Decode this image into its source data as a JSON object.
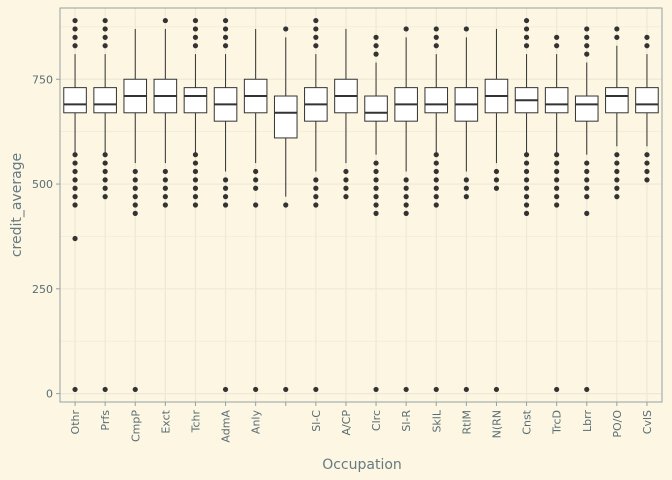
{
  "chart_data": {
    "type": "boxplot",
    "title": "",
    "xlabel": "Occupation",
    "ylabel": "credit_average",
    "ylim": [
      -20,
      920
    ],
    "y_ticks": [
      0,
      250,
      500,
      750
    ],
    "grid": true,
    "legend": "none",
    "colors": {
      "background": "#fdf6e3",
      "panel": "#fdf6e3",
      "grid": "#eee8d5",
      "box_fill": "#ffffff",
      "box_line": "#333333",
      "outlier": "#333333",
      "text": "#586e75"
    },
    "categories": [
      "Othr",
      "Prfs",
      "CmpP",
      "Exct",
      "Tchr",
      "AdmA",
      "Anly",
      "",
      "Sl-C",
      "A/CP",
      "Clrc",
      "Sl-R",
      "SklL",
      "RtlM",
      "N(RN",
      "Cnst",
      "TrcD",
      "Lbrr",
      "PO/O",
      "CvlS"
    ],
    "boxes": [
      {
        "whisker_low": 570,
        "q1": 670,
        "median": 690,
        "q3": 730,
        "whisker_high": 810,
        "outliers": [
          10,
          370,
          450,
          470,
          490,
          510,
          530,
          550,
          570,
          830,
          850,
          870,
          890
        ]
      },
      {
        "whisker_low": 570,
        "q1": 670,
        "median": 690,
        "q3": 730,
        "whisker_high": 810,
        "outliers": [
          10,
          470,
          490,
          510,
          530,
          550,
          570,
          830,
          850,
          870,
          890
        ]
      },
      {
        "whisker_low": 550,
        "q1": 670,
        "median": 710,
        "q3": 750,
        "whisker_high": 870,
        "outliers": [
          10,
          430,
          450,
          470,
          490,
          510,
          530
        ]
      },
      {
        "whisker_low": 550,
        "q1": 670,
        "median": 710,
        "q3": 750,
        "whisker_high": 870,
        "outliers": [
          450,
          470,
          490,
          510,
          530,
          890
        ]
      },
      {
        "whisker_low": 570,
        "q1": 670,
        "median": 710,
        "q3": 730,
        "whisker_high": 810,
        "outliers": [
          450,
          470,
          490,
          510,
          530,
          550,
          570,
          830,
          850,
          870,
          890
        ]
      },
      {
        "whisker_low": 530,
        "q1": 650,
        "median": 690,
        "q3": 730,
        "whisker_high": 810,
        "outliers": [
          10,
          450,
          470,
          490,
          510,
          830,
          850,
          870,
          890
        ]
      },
      {
        "whisker_low": 550,
        "q1": 670,
        "median": 710,
        "q3": 750,
        "whisker_high": 870,
        "outliers": [
          10,
          450,
          490,
          510,
          530
        ]
      },
      {
        "whisker_low": 470,
        "q1": 610,
        "median": 670,
        "q3": 710,
        "whisker_high": 850,
        "outliers": [
          10,
          450,
          870
        ]
      },
      {
        "whisker_low": 530,
        "q1": 650,
        "median": 690,
        "q3": 730,
        "whisker_high": 810,
        "outliers": [
          10,
          450,
          470,
          490,
          510,
          830,
          850,
          870,
          890
        ]
      },
      {
        "whisker_low": 550,
        "q1": 670,
        "median": 710,
        "q3": 750,
        "whisker_high": 870,
        "outliers": [
          470,
          490,
          510,
          530
        ]
      },
      {
        "whisker_low": 570,
        "q1": 650,
        "median": 670,
        "q3": 710,
        "whisker_high": 790,
        "outliers": [
          10,
          430,
          450,
          470,
          490,
          510,
          530,
          550,
          810,
          830,
          850
        ]
      },
      {
        "whisker_low": 530,
        "q1": 650,
        "median": 690,
        "q3": 730,
        "whisker_high": 850,
        "outliers": [
          10,
          430,
          450,
          470,
          490,
          510,
          870
        ]
      },
      {
        "whisker_low": 570,
        "q1": 670,
        "median": 690,
        "q3": 730,
        "whisker_high": 810,
        "outliers": [
          10,
          450,
          470,
          490,
          510,
          530,
          550,
          570,
          830,
          850,
          870
        ]
      },
      {
        "whisker_low": 530,
        "q1": 650,
        "median": 690,
        "q3": 730,
        "whisker_high": 850,
        "outliers": [
          10,
          470,
          490,
          510,
          870
        ]
      },
      {
        "whisker_low": 550,
        "q1": 670,
        "median": 710,
        "q3": 750,
        "whisker_high": 870,
        "outliers": [
          10,
          490,
          510,
          530
        ]
      },
      {
        "whisker_low": 570,
        "q1": 670,
        "median": 700,
        "q3": 730,
        "whisker_high": 810,
        "outliers": [
          430,
          450,
          470,
          490,
          510,
          530,
          550,
          570,
          830,
          850,
          870,
          890
        ]
      },
      {
        "whisker_low": 570,
        "q1": 670,
        "median": 690,
        "q3": 730,
        "whisker_high": 810,
        "outliers": [
          10,
          450,
          470,
          490,
          510,
          530,
          550,
          570,
          830,
          850
        ]
      },
      {
        "whisker_low": 570,
        "q1": 650,
        "median": 690,
        "q3": 710,
        "whisker_high": 790,
        "outliers": [
          10,
          430,
          470,
          490,
          510,
          530,
          550,
          810,
          830,
          850,
          870
        ]
      },
      {
        "whisker_low": 590,
        "q1": 670,
        "median": 710,
        "q3": 730,
        "whisker_high": 830,
        "outliers": [
          470,
          490,
          510,
          530,
          550,
          570,
          850,
          870
        ]
      },
      {
        "whisker_low": 590,
        "q1": 670,
        "median": 690,
        "q3": 730,
        "whisker_high": 810,
        "outliers": [
          510,
          530,
          550,
          570,
          830,
          850
        ]
      }
    ]
  }
}
